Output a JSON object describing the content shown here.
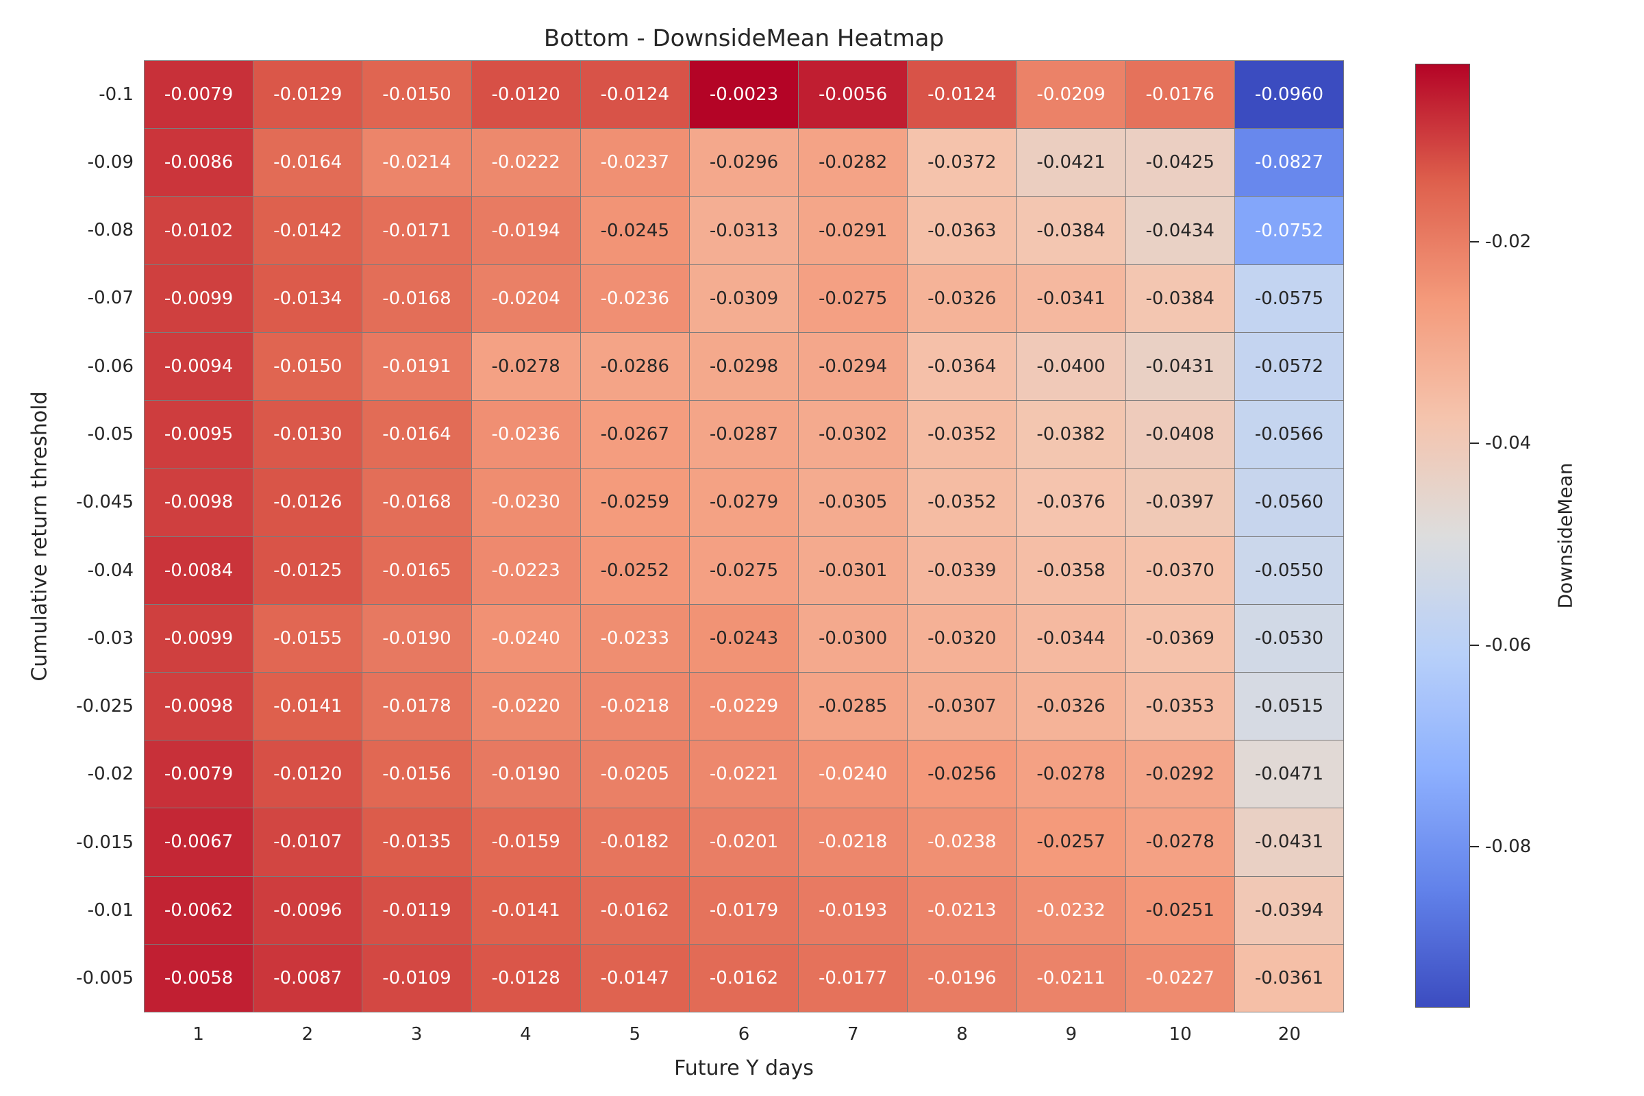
{
  "chart_data": {
    "type": "heatmap",
    "title": "Bottom - DownsideMean Heatmap",
    "xlabel": "Future Y days",
    "ylabel": "Cumulative return threshold",
    "colorbar_label": "DownsideMean",
    "colormap": "coolwarm",
    "x_categories": [
      "1",
      "2",
      "3",
      "4",
      "5",
      "6",
      "7",
      "8",
      "9",
      "10",
      "20"
    ],
    "y_categories": [
      "-0.1",
      "-0.09",
      "-0.08",
      "-0.07",
      "-0.06",
      "-0.05",
      "-0.045",
      "-0.04",
      "-0.03",
      "-0.025",
      "-0.02",
      "-0.015",
      "-0.01",
      "-0.005"
    ],
    "values": [
      [
        -0.0079,
        -0.0129,
        -0.015,
        -0.012,
        -0.0124,
        -0.0023,
        -0.0056,
        -0.0124,
        -0.0209,
        -0.0176,
        -0.096
      ],
      [
        -0.0086,
        -0.0164,
        -0.0214,
        -0.0222,
        -0.0237,
        -0.0296,
        -0.0282,
        -0.0372,
        -0.0421,
        -0.0425,
        -0.0827
      ],
      [
        -0.0102,
        -0.0142,
        -0.0171,
        -0.0194,
        -0.0245,
        -0.0313,
        -0.0291,
        -0.0363,
        -0.0384,
        -0.0434,
        -0.0752
      ],
      [
        -0.0099,
        -0.0134,
        -0.0168,
        -0.0204,
        -0.0236,
        -0.0309,
        -0.0275,
        -0.0326,
        -0.0341,
        -0.0384,
        -0.0575
      ],
      [
        -0.0094,
        -0.015,
        -0.0191,
        -0.0278,
        -0.0286,
        -0.0298,
        -0.0294,
        -0.0364,
        -0.04,
        -0.0431,
        -0.0572
      ],
      [
        -0.0095,
        -0.013,
        -0.0164,
        -0.0236,
        -0.0267,
        -0.0287,
        -0.0302,
        -0.0352,
        -0.0382,
        -0.0408,
        -0.0566
      ],
      [
        -0.0098,
        -0.0126,
        -0.0168,
        -0.023,
        -0.0259,
        -0.0279,
        -0.0305,
        -0.0352,
        -0.0376,
        -0.0397,
        -0.056
      ],
      [
        -0.0084,
        -0.0125,
        -0.0165,
        -0.0223,
        -0.0252,
        -0.0275,
        -0.0301,
        -0.0339,
        -0.0358,
        -0.037,
        -0.055
      ],
      [
        -0.0099,
        -0.0155,
        -0.019,
        -0.024,
        -0.0233,
        -0.0243,
        -0.03,
        -0.032,
        -0.0344,
        -0.0369,
        -0.053
      ],
      [
        -0.0098,
        -0.0141,
        -0.0178,
        -0.022,
        -0.0218,
        -0.0229,
        -0.0285,
        -0.0307,
        -0.0326,
        -0.0353,
        -0.0515
      ],
      [
        -0.0079,
        -0.012,
        -0.0156,
        -0.019,
        -0.0205,
        -0.0221,
        -0.024,
        -0.0256,
        -0.0278,
        -0.0292,
        -0.0471
      ],
      [
        -0.0067,
        -0.0107,
        -0.0135,
        -0.0159,
        -0.0182,
        -0.0201,
        -0.0218,
        -0.0238,
        -0.0257,
        -0.0278,
        -0.0431
      ],
      [
        -0.0062,
        -0.0096,
        -0.0119,
        -0.0141,
        -0.0162,
        -0.0179,
        -0.0193,
        -0.0213,
        -0.0232,
        -0.0251,
        -0.0394
      ],
      [
        -0.0058,
        -0.0087,
        -0.0109,
        -0.0128,
        -0.0147,
        -0.0162,
        -0.0177,
        -0.0196,
        -0.0211,
        -0.0227,
        -0.0361
      ]
    ],
    "vmin": -0.096,
    "vmax": -0.0023,
    "colorbar_ticks": [
      -0.02,
      -0.04,
      -0.06,
      -0.08
    ],
    "annotation_decimals": 4,
    "colorbar_tick_decimals": 2,
    "grid": true,
    "legend_position": "right-colorbar"
  }
}
